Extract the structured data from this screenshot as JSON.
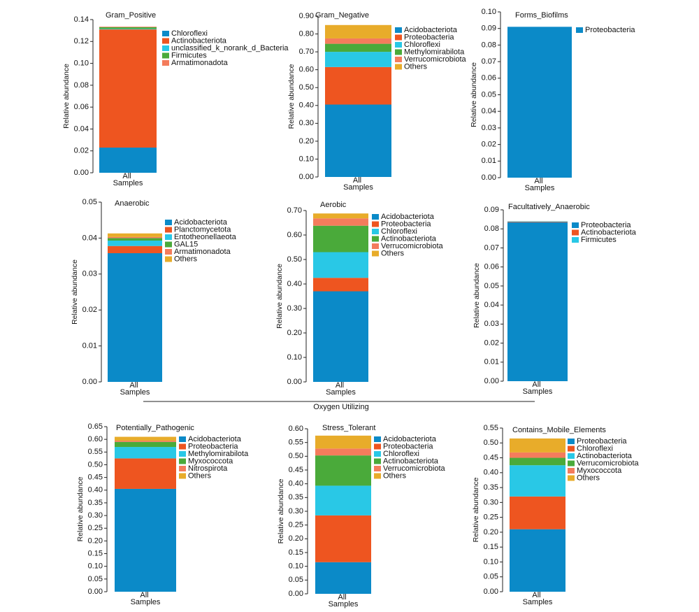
{
  "chart_data": [
    {
      "type": "bar",
      "title": "Gram_Positive",
      "y_label": "Relative abundance",
      "categories": [
        "All Samples"
      ],
      "ylim": [
        0,
        0.14
      ],
      "yticks": [
        {
          "value": 0,
          "label": "0.00"
        },
        0.02,
        0.04,
        0.06,
        0.08,
        {
          "value": 0.1,
          "label": "0.10"
        },
        0.12,
        0.14
      ],
      "series": [
        {
          "name": "Chloroflexi",
          "color": "#0b8ac8",
          "values": [
            0.023
          ]
        },
        {
          "name": "Actinobacteriota",
          "color": "#ee5520",
          "values": [
            0.108
          ]
        },
        {
          "name": "unclassified_k_norank_d_Bacteria",
          "color": "#29c8e6",
          "values": [
            0.0005
          ]
        },
        {
          "name": "Firmicutes",
          "color": "#4aaa3a",
          "values": [
            0.0015
          ]
        },
        {
          "name": "Armatimonadota",
          "color": "#f47c5c",
          "values": [
            0.0005
          ]
        }
      ]
    },
    {
      "type": "bar",
      "title": "Gram_Negative",
      "y_label": "Relative abundance",
      "categories": [
        "All Samples"
      ],
      "ylim": [
        0,
        0.9
      ],
      "yticks": [
        {
          "value": 0,
          "label": "0.00"
        },
        {
          "value": 0.1,
          "label": "0.10"
        },
        {
          "value": 0.2,
          "label": "0.20"
        },
        {
          "value": 0.3,
          "label": "0.30"
        },
        {
          "value": 0.4,
          "label": "0.40"
        },
        {
          "value": 0.5,
          "label": "0.50"
        },
        {
          "value": 0.6,
          "label": "0.60"
        },
        {
          "value": 0.7,
          "label": "0.70"
        },
        {
          "value": 0.8,
          "label": "0.80"
        },
        {
          "value": 0.9,
          "label": "0.90"
        }
      ],
      "series": [
        {
          "name": "Acidobacteriota",
          "color": "#0b8ac8",
          "values": [
            0.405
          ]
        },
        {
          "name": "Proteobacteria",
          "color": "#ee5520",
          "values": [
            0.21
          ]
        },
        {
          "name": "Chloroflexi",
          "color": "#29c8e6",
          "values": [
            0.085
          ]
        },
        {
          "name": "Methylomirabilota",
          "color": "#4aaa3a",
          "values": [
            0.045
          ]
        },
        {
          "name": "Verrucomicrobiota",
          "color": "#f47c5c",
          "values": [
            0.03
          ]
        },
        {
          "name": "Others",
          "color": "#e8ac2a",
          "values": [
            0.075
          ]
        }
      ]
    },
    {
      "type": "bar",
      "title": "Forms_Biofilms",
      "y_label": "Relative abundance",
      "categories": [
        "All Samples"
      ],
      "ylim": [
        0,
        0.1
      ],
      "yticks": [
        {
          "value": 0,
          "label": "0.00"
        },
        0.01,
        0.02,
        0.03,
        0.04,
        0.05,
        0.06,
        0.07,
        0.08,
        0.09,
        {
          "value": 0.1,
          "label": "0.10"
        }
      ],
      "series": [
        {
          "name": "Proteobacteria",
          "color": "#0b8ac8",
          "values": [
            0.091
          ]
        }
      ]
    },
    {
      "type": "bar",
      "title": "Anaerobic",
      "y_label": "Relative abundance",
      "categories": [
        "All Samples"
      ],
      "ylim": [
        0,
        0.05
      ],
      "yticks": [
        {
          "value": 0,
          "label": "0.00"
        },
        0.01,
        0.02,
        0.03,
        0.04,
        0.05
      ],
      "series": [
        {
          "name": "Acidobacteriota",
          "color": "#0b8ac8",
          "values": [
            0.0358
          ]
        },
        {
          "name": "Planctomycetota",
          "color": "#ee5520",
          "values": [
            0.002
          ]
        },
        {
          "name": "Entotheonellaeota",
          "color": "#29c8e6",
          "values": [
            0.0015
          ]
        },
        {
          "name": "GAL15",
          "color": "#4aaa3a",
          "values": [
            0.0007
          ]
        },
        {
          "name": "Armatimonadota",
          "color": "#f47c5c",
          "values": [
            0.0003
          ]
        },
        {
          "name": "Others",
          "color": "#e8ac2a",
          "values": [
            0.001
          ]
        }
      ]
    },
    {
      "type": "bar",
      "title": "Aerobic",
      "y_label": "Relative abundance",
      "categories": [
        "All Samples"
      ],
      "ylim": [
        0,
        0.7
      ],
      "yticks": [
        {
          "value": 0,
          "label": "0.00"
        },
        {
          "value": 0.1,
          "label": "0.10"
        },
        {
          "value": 0.2,
          "label": "0.20"
        },
        {
          "value": 0.3,
          "label": "0.30"
        },
        {
          "value": 0.4,
          "label": "0.40"
        },
        {
          "value": 0.5,
          "label": "0.50"
        },
        {
          "value": 0.6,
          "label": "0.60"
        },
        {
          "value": 0.7,
          "label": "0.70"
        }
      ],
      "series": [
        {
          "name": "Acidobacteriota",
          "color": "#0b8ac8",
          "values": [
            0.37
          ]
        },
        {
          "name": "Proteobacteria",
          "color": "#ee5520",
          "values": [
            0.055
          ]
        },
        {
          "name": "Chloroflexi",
          "color": "#29c8e6",
          "values": [
            0.105
          ]
        },
        {
          "name": "Actinobacteriota",
          "color": "#4aaa3a",
          "values": [
            0.108
          ]
        },
        {
          "name": "Verrucomicrobiota",
          "color": "#f47c5c",
          "values": [
            0.03
          ]
        },
        {
          "name": "Others",
          "color": "#e8ac2a",
          "values": [
            0.02
          ]
        }
      ]
    },
    {
      "type": "bar",
      "title": "Facultatively_Anaerobic",
      "y_label": "Relative abundance",
      "categories": [
        "All Samples"
      ],
      "ylim": [
        0,
        0.09
      ],
      "yticks": [
        {
          "value": 0,
          "label": "0.00"
        },
        0.01,
        0.02,
        0.03,
        0.04,
        0.05,
        0.06,
        0.07,
        0.08,
        0.09
      ],
      "series": [
        {
          "name": "Proteobacteria",
          "color": "#0b8ac8",
          "values": [
            0.0835
          ]
        },
        {
          "name": "Actinobacteriota",
          "color": "#ee5520",
          "values": [
            0.0003
          ]
        },
        {
          "name": "Firmicutes",
          "color": "#29c8e6",
          "values": [
            0.0002
          ]
        }
      ]
    },
    {
      "type": "bar",
      "title": "Potentially_Pathogenic",
      "y_label": "Relative abundance",
      "categories": [
        "All Samples"
      ],
      "ylim": [
        0,
        0.65
      ],
      "yticks": [
        {
          "value": 0,
          "label": "0.00"
        },
        0.05,
        {
          "value": 0.1,
          "label": "0.10"
        },
        0.15,
        {
          "value": 0.2,
          "label": "0.20"
        },
        0.25,
        {
          "value": 0.3,
          "label": "0.30"
        },
        0.35,
        {
          "value": 0.4,
          "label": "0.40"
        },
        0.45,
        {
          "value": 0.5,
          "label": "0.50"
        },
        0.55,
        {
          "value": 0.6,
          "label": "0.60"
        },
        0.65
      ],
      "series": [
        {
          "name": "Acidobacteriota",
          "color": "#0b8ac8",
          "values": [
            0.405
          ]
        },
        {
          "name": "Proteobacteria",
          "color": "#ee5520",
          "values": [
            0.12
          ]
        },
        {
          "name": "Methylomirabilota",
          "color": "#29c8e6",
          "values": [
            0.045
          ]
        },
        {
          "name": "Myxococcota",
          "color": "#4aaa3a",
          "values": [
            0.02
          ]
        },
        {
          "name": "Nitrospirota",
          "color": "#f47c5c",
          "values": [
            0.005
          ]
        },
        {
          "name": "Others",
          "color": "#e8ac2a",
          "values": [
            0.015
          ]
        }
      ]
    },
    {
      "type": "bar",
      "title": "Stress_Tolerant",
      "y_label": "Relative abundance",
      "categories": [
        "All Samples"
      ],
      "ylim": [
        0,
        0.6
      ],
      "yticks": [
        {
          "value": 0,
          "label": "0.00"
        },
        0.05,
        {
          "value": 0.1,
          "label": "0.10"
        },
        0.15,
        {
          "value": 0.2,
          "label": "0.20"
        },
        0.25,
        {
          "value": 0.3,
          "label": "0.30"
        },
        0.35,
        {
          "value": 0.4,
          "label": "0.40"
        },
        0.45,
        {
          "value": 0.5,
          "label": "0.50"
        },
        0.55,
        {
          "value": 0.6,
          "label": "0.60"
        }
      ],
      "series": [
        {
          "name": "Acidobacteriota",
          "color": "#0b8ac8",
          "values": [
            0.115
          ]
        },
        {
          "name": "Proteobacteria",
          "color": "#ee5520",
          "values": [
            0.17
          ]
        },
        {
          "name": "Chloroflexi",
          "color": "#29c8e6",
          "values": [
            0.108
          ]
        },
        {
          "name": "Actinobacteriota",
          "color": "#4aaa3a",
          "values": [
            0.11
          ]
        },
        {
          "name": "Verrucomicrobiota",
          "color": "#f47c5c",
          "values": [
            0.025
          ]
        },
        {
          "name": "Others",
          "color": "#e8ac2a",
          "values": [
            0.047
          ]
        }
      ]
    },
    {
      "type": "bar",
      "title": "Contains_Mobile_Elements",
      "y_label": "Relative abundance",
      "categories": [
        "All Samples"
      ],
      "ylim": [
        0,
        0.55
      ],
      "yticks": [
        {
          "value": 0,
          "label": "0.00"
        },
        0.05,
        {
          "value": 0.1,
          "label": "0.10"
        },
        0.15,
        {
          "value": 0.2,
          "label": "0.20"
        },
        0.25,
        {
          "value": 0.3,
          "label": "0.30"
        },
        0.35,
        {
          "value": 0.4,
          "label": "0.40"
        },
        0.45,
        {
          "value": 0.5,
          "label": "0.50"
        },
        0.55
      ],
      "series": [
        {
          "name": "Proteobacteria",
          "color": "#0b8ac8",
          "values": [
            0.21
          ]
        },
        {
          "name": "Chloroflexi",
          "color": "#ee5520",
          "values": [
            0.11
          ]
        },
        {
          "name": "Actinobacteriota",
          "color": "#29c8e6",
          "values": [
            0.105
          ]
        },
        {
          "name": "Verrucomicrobiota",
          "color": "#4aaa3a",
          "values": [
            0.025
          ]
        },
        {
          "name": "Myxococcota",
          "color": "#f47c5c",
          "values": [
            0.018
          ]
        },
        {
          "name": "Others",
          "color": "#e8ac2a",
          "values": [
            0.047
          ]
        }
      ]
    }
  ],
  "annotation": "Oxygen Utilizing"
}
